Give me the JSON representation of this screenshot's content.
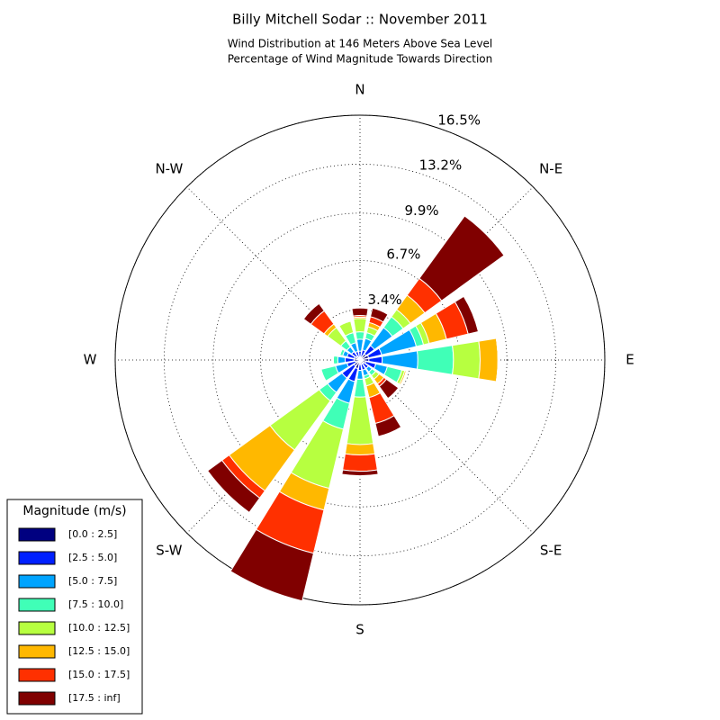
{
  "chart_data": {
    "type": "windrose",
    "title": "Billy Mitchell Sodar :: November 2011",
    "subtitle": [
      "Wind Distribution at 146 Meters Above Sea Level",
      "Percentage of Wind Magnitude Towards Direction"
    ],
    "categories": [
      "N",
      null,
      "N-E",
      null,
      "E",
      null,
      "S-E",
      null,
      "S",
      null,
      "S-W",
      null,
      "W",
      null,
      "N-W",
      null
    ],
    "legend_title": "Magnitude (m/s)",
    "legend": "lower left",
    "grid": true,
    "ylim": [
      0,
      16.5
    ],
    "yticks": [
      {
        "value": 3.4,
        "label": "3.4%"
      },
      {
        "value": 6.7,
        "label": "6.7%"
      },
      {
        "value": 9.9,
        "label": "9.9%"
      },
      {
        "value": 13.2,
        "label": "13.2%"
      },
      {
        "value": 16.5,
        "label": "16.5%"
      }
    ],
    "series": [
      {
        "name": "[0.0 : 2.5]",
        "color": "#000080",
        "values": [
          0.2,
          0.2,
          0.5,
          0.6,
          0.6,
          0.4,
          0.3,
          0.3,
          0.3,
          0.6,
          0.5,
          0.3,
          0.4,
          0.4,
          0.3,
          0.2
        ]
      },
      {
        "name": "[2.5 : 5.0]",
        "color": "#0020ff",
        "values": [
          0.4,
          0.5,
          0.7,
          0.9,
          0.9,
          0.7,
          0.4,
          0.4,
          0.4,
          0.9,
          1.0,
          0.6,
          0.6,
          0.5,
          0.4,
          0.4
        ]
      },
      {
        "name": "[5.0 : 7.5]",
        "color": "#00a4ff",
        "values": [
          0.8,
          0.8,
          1.5,
          2.4,
          2.4,
          0.8,
          0.3,
          0.4,
          0.6,
          1.5,
          1.2,
          0.8,
          0.5,
          0.3,
          0.4,
          0.6
        ]
      },
      {
        "name": "[7.5 : 10.0]",
        "color": "#40ffb7",
        "values": [
          0.5,
          0.4,
          0.9,
          0.5,
          2.4,
          1.0,
          0.3,
          0.2,
          1.2,
          1.8,
          0.7,
          1.0,
          0.3,
          0.2,
          0.5,
          0.7
        ]
      },
      {
        "name": "[10.0 : 12.5]",
        "color": "#b7ff40",
        "values": [
          0.9,
          0.4,
          0.6,
          0.4,
          1.8,
          0.2,
          0.3,
          0.5,
          3.2,
          4.1,
          4.1,
          0,
          0,
          0,
          1.1,
          0.8
        ]
      },
      {
        "name": "[12.5 : 15.0]",
        "color": "#ffb800",
        "values": [
          0.1,
          0.3,
          1.2,
          1.2,
          1.2,
          0.1,
          0.4,
          0.8,
          0.7,
          1.5,
          3.4,
          0,
          0,
          0,
          0.3,
          0
        ]
      },
      {
        "name": "[15.0 : 17.5]",
        "color": "#ff3000",
        "values": [
          0.1,
          0.4,
          1.4,
          1.5,
          0,
          0,
          0.2,
          1.8,
          1.1,
          3.0,
          0.6,
          0,
          0,
          0,
          1.1,
          0
        ]
      },
      {
        "name": "[17.5 : inf]",
        "color": "#800000",
        "values": [
          0.5,
          0.6,
          5.2,
          0.7,
          0,
          0,
          1.0,
          0.9,
          0.3,
          3.3,
          1.2,
          0,
          0,
          0,
          0.6,
          0
        ]
      }
    ]
  }
}
